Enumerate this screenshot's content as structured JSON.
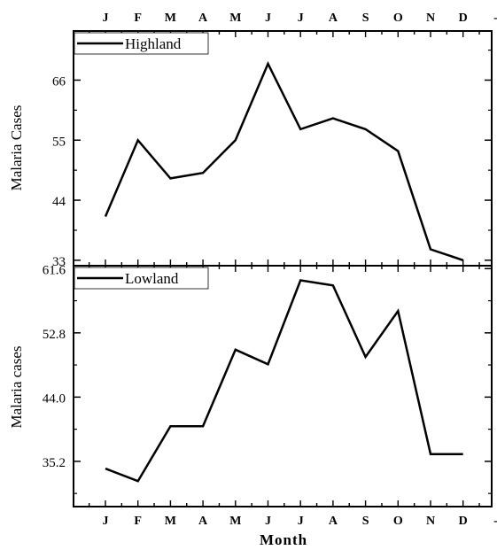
{
  "chart_data": [
    {
      "type": "line",
      "categories": [
        "J",
        "F",
        "M",
        "A",
        "M",
        "J",
        "J",
        "A",
        "S",
        "O",
        "N",
        "D"
      ],
      "series": [
        {
          "name": "Highland",
          "values": [
            41,
            55,
            48,
            49,
            55,
            69,
            57,
            59,
            57,
            53,
            35,
            33
          ]
        }
      ],
      "ylabel": "Malaria Cases",
      "ylim": [
        32,
        75
      ],
      "yticks": [
        33,
        44,
        55,
        66
      ],
      "legend": "top-left",
      "x_tick_labels_position": "top",
      "grid": false
    },
    {
      "type": "line",
      "categories": [
        "J",
        "F",
        "M",
        "A",
        "M",
        "J",
        "J",
        "A",
        "S",
        "O",
        "N",
        "D"
      ],
      "series": [
        {
          "name": "Lowland",
          "values": [
            34.2,
            32.5,
            40.0,
            40.0,
            50.5,
            48.5,
            60.0,
            59.3,
            49.5,
            55.8,
            36.2,
            36.2
          ]
        }
      ],
      "ylabel": "Malaria cases",
      "xlabel": "Month",
      "ylim": [
        29,
        62
      ],
      "yticks": [
        35.2,
        44.0,
        52.8,
        61.6
      ],
      "ytick_labels": [
        "35.2",
        "44.0",
        "52.8",
        "61.6"
      ],
      "legend": "top-left",
      "grid": false
    }
  ],
  "extra_x_tick_label": "-"
}
